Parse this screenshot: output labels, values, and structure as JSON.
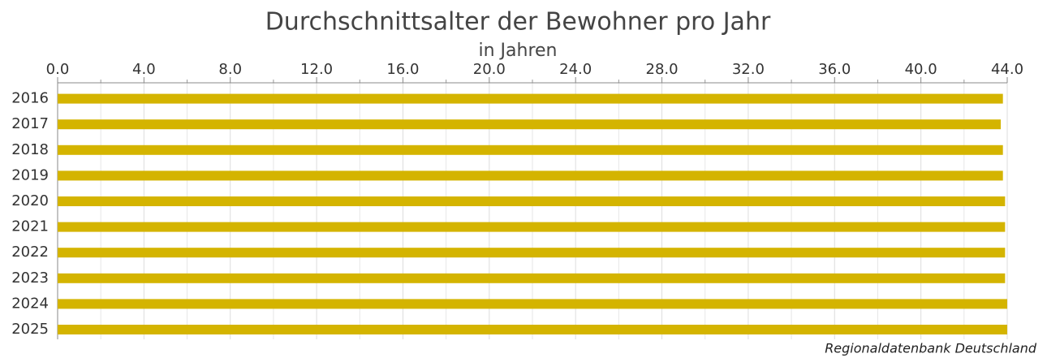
{
  "chart_data": {
    "type": "bar",
    "orientation": "horizontal",
    "title": "Durchschnittsalter der Bewohner pro Jahr",
    "subtitle": "in Jahren",
    "source": "Regionaldatenbank Deutschland",
    "categories": [
      "2016",
      "2017",
      "2018",
      "2019",
      "2020",
      "2021",
      "2022",
      "2023",
      "2024",
      "2025"
    ],
    "values": [
      43.8,
      43.7,
      43.8,
      43.8,
      43.9,
      43.9,
      43.9,
      43.9,
      44.0,
      44.0
    ],
    "color": "#d4b400",
    "xlim": [
      0,
      44
    ],
    "xticks": [
      {
        "value": 0,
        "label": "0.0"
      },
      {
        "value": 4,
        "label": "4.0"
      },
      {
        "value": 8,
        "label": "8.0"
      },
      {
        "value": 12,
        "label": "12.0"
      },
      {
        "value": 16,
        "label": "16.0"
      },
      {
        "value": 20,
        "label": "20.0"
      },
      {
        "value": 24,
        "label": "24.0"
      },
      {
        "value": 28,
        "label": "28.0"
      },
      {
        "value": 32,
        "label": "32.0"
      },
      {
        "value": 36,
        "label": "36.0"
      },
      {
        "value": 40,
        "label": "40.0"
      },
      {
        "value": 44,
        "label": "44.0"
      }
    ],
    "xminorticks": [
      2,
      6,
      10,
      14,
      18,
      22,
      26,
      30,
      34,
      38,
      42
    ],
    "grid": true
  }
}
